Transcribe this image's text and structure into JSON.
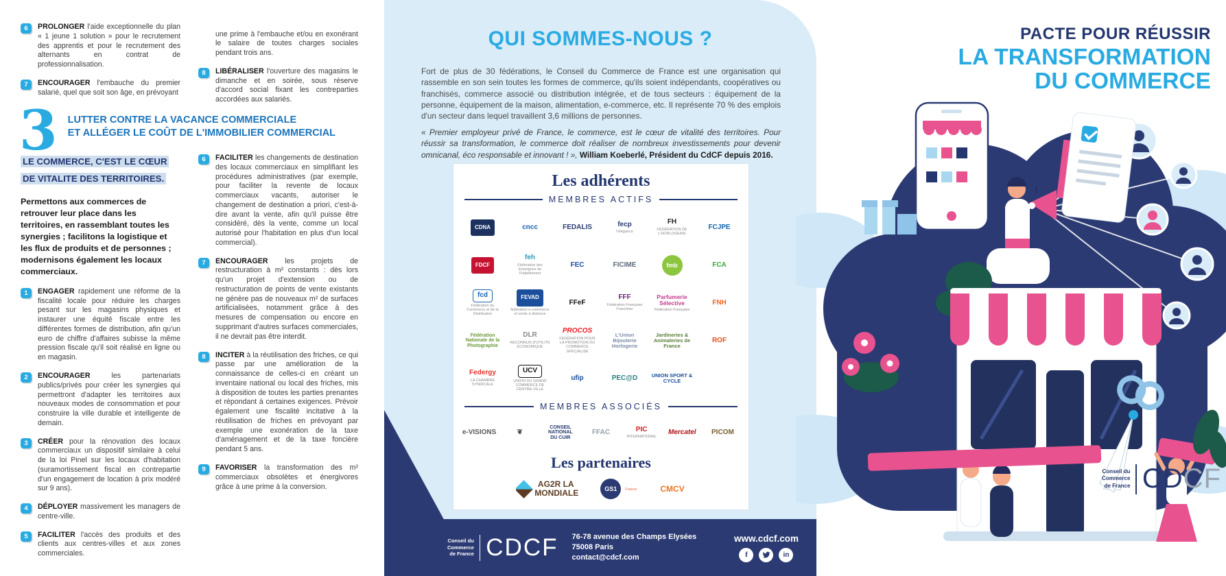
{
  "colors": {
    "cyan": "#29abe2",
    "navy": "#23366f",
    "footer_navy": "#2b3a72",
    "pink": "#e8538f",
    "light_blue_bg": "#d9ecf8",
    "heading_blue": "#1b75bc",
    "highlight_bg": "#cdddee"
  },
  "left_panel": {
    "col_a_items": [
      {
        "n": "6",
        "verb": "PROLONGER",
        "text": "l'aide exceptionnelle du plan « 1 jeune 1 solution » pour le recrutement des apprentis et pour le recrutement des alternants en contrat de professionnalisation."
      },
      {
        "n": "7",
        "verb": "ENCOURAGER",
        "text": "l'embauche du premier salarié, quel que soit son âge, en prévoyant"
      }
    ],
    "col_b_continuation": "une prime à l'embauche et/ou en exonérant le salaire de toutes charges sociales pendant trois ans.",
    "col_b_items": [
      {
        "n": "8",
        "verb": "LIBÉRALISER",
        "text": "l'ouverture des magasins le dimanche et en soirée, sous réserve d'accord social fixant les contreparties accordées aux salariés."
      }
    ],
    "section": {
      "number": "3",
      "title_line1": "LUTTER CONTRE LA VACANCE COMMERCIALE",
      "title_line2": "ET ALLÉGER LE COÛT DE L'IMMOBILIER COMMERCIAL",
      "highlight": "LE COMMERCE, C'EST LE CŒUR DE VITALITE DES TERRITOIRES.",
      "intro": "Permettons aux commerces de retrouver leur place dans les territoires, en rassemblant toutes les synergies ; facilitons la logistique et les flux de produits et de personnes ; modernisons également les locaux commerciaux.",
      "items_left": [
        {
          "n": "1",
          "verb": "ENGAGER",
          "text": "rapidement une réforme de la fiscalité locale pour réduire les charges pesant sur les magasins physiques et instaurer une équité fiscale entre les différentes formes de distribution, afin qu'un euro de chiffre d'affaires subisse la même pression fiscale qu'il soit réalisé en ligne ou en magasin."
        },
        {
          "n": "2",
          "verb": "ENCOURAGER",
          "text": "les partenariats publics/privés pour créer les synergies qui permettront d'adapter les territoires aux nouveaux modes de consommation et pour construire la ville durable et intelligente de demain."
        },
        {
          "n": "3",
          "verb": "CRÉER",
          "text": "pour la rénovation des locaux commerciaux un dispositif similaire à celui de la loi Pinel sur les locaux d'habitation (suramortissement fiscal en contrepartie d'un engagement de location à prix modéré sur 9 ans)."
        },
        {
          "n": "4",
          "verb": "DÉPLOYER",
          "text": "massivement les managers de centre-ville."
        },
        {
          "n": "5",
          "verb": "FACILITER",
          "text": "l'accès des produits et des clients aux centres-villes et aux zones commerciales."
        }
      ],
      "items_right": [
        {
          "n": "6",
          "verb": "FACILITER",
          "text": "les changements de destination des locaux commerciaux en simplifiant les procédures administratives (par exemple, pour faciliter la revente de locaux commerciaux vacants, autoriser le changement de destination a priori, c'est-à-dire avant la vente, afin qu'il puisse être considéré, dès la vente, comme un local autorisé pour l'habitation en plus d'un local commercial)."
        },
        {
          "n": "7",
          "verb": "ENCOURAGER",
          "text": "les projets de restructuration à m² constants : dès lors qu'un projet d'extension ou de restructuration de points de vente existants ne génère pas de nouveaux m² de surfaces artificialisées, notamment grâce à des mesures de compensation ou encore en supprimant d'autres surfaces commerciales, il ne devrait pas être interdit."
        },
        {
          "n": "8",
          "verb": "INCITER",
          "text": "à la réutilisation des friches, ce qui passe par une amélioration de la connaissance de celles-ci en créant un inventaire national ou local des friches, mis à disposition de toutes les parties prenantes et répondant à certaines exigences. Prévoir également une fiscalité incitative à la réutilisation de friches en prévoyant par exemple une exonération de la taxe d'aménagement et de la taxe foncière pendant 5 ans."
        },
        {
          "n": "9",
          "verb": "FAVORISER",
          "text": "la transformation des m² commerciaux obsolètes et énergivores grâce à une prime à la conversion."
        }
      ]
    }
  },
  "middle_panel": {
    "title": "QUI SOMMES-NOUS ?",
    "para1": "Fort de plus de 30 fédérations, le Conseil du Commerce de France est une organisation qui rassemble en son sein toutes les formes de commerce, qu'ils soient indépendants, coopératives ou franchisés, commerce associé ou distribution intégrée, et de tous secteurs : équipement de la personne, équipement de la maison, alimentation, e-commerce, etc. Il représente 70 % des emplois d'un secteur dans lequel travaillent 3,6 millions de personnes.",
    "quote": "« Premier employeur privé de France, le commerce, est le cœur de vitalité des territoires. Pour réussir sa transformation, le commerce doit réaliser de nombreux investissements pour devenir omnicanal, éco responsable et innovant ! », ",
    "quote_author": "William Koeberlé, Président du CdCF depuis 2016.",
    "adherents_title": "Les adhérents",
    "membres_actifs_label": "MEMBRES ACTIFS",
    "membres_associes_label": "MEMBRES ASSOCIÉS",
    "partenaires_title": "Les partenaires",
    "membres_actifs": [
      {
        "n": "cdna",
        "t": "CDNA",
        "c": "#1d3160",
        "sh": "badge"
      },
      {
        "n": "cncc",
        "t": "cncc",
        "c": "#1464ac"
      },
      {
        "n": "fedalis",
        "t": "FEDALIS",
        "c": "#2b3a74"
      },
      {
        "n": "fecp",
        "t": "fecp",
        "c": "#2b3a74",
        "sub": "l'élégance"
      },
      {
        "n": "fh-horlogerie",
        "t": "FH",
        "c": "#222222",
        "sub": "FÉDÉRATION DE L'HORLOGERIE"
      },
      {
        "n": "fcjpe",
        "t": "FCJPE",
        "c": "#1464ac"
      },
      {
        "n": "fdcf",
        "t": "FDCF",
        "c": "#c41230",
        "sh": "badge"
      },
      {
        "n": "feh",
        "t": "feh",
        "c": "#2e9bb5",
        "sub": "Fédération des Enseignes de l'Habillement"
      },
      {
        "n": "fec",
        "t": "FEC",
        "c": "#1b4f9c"
      },
      {
        "n": "ficime",
        "t": "FICIME",
        "c": "#5a6b7a"
      },
      {
        "n": "fmb",
        "t": "fmb",
        "c": "#8cc63f",
        "sh": "round"
      },
      {
        "n": "fca",
        "t": "FCA",
        "c": "#3aaa35"
      },
      {
        "n": "fcd",
        "t": "fcd",
        "c": "#1464ac",
        "sh": "boxed",
        "sub": "Fédération du Commerce et de la Distribution"
      },
      {
        "n": "fevad",
        "t": "FEVAD",
        "c": "#1b4f9c",
        "sh": "badge",
        "sub": "fédération e-commerce et vente à distance"
      },
      {
        "n": "ffef",
        "t": "FFeF",
        "c": "#111111"
      },
      {
        "n": "fff-franchise",
        "t": "FFF",
        "c": "#6a1f7a",
        "sub": "Fédération Française Franchise"
      },
      {
        "n": "parfumerie-selective",
        "t": "Parfumerie Sélective",
        "c": "#c13b8a",
        "fs": "8.5px",
        "sub": "Fédération Française"
      },
      {
        "n": "fnh",
        "t": "FNH",
        "c": "#f26522"
      },
      {
        "n": "fnp-photographie",
        "t": "Fédération Nationale de la Photographie",
        "c": "#6a9a3a",
        "fs": "7px"
      },
      {
        "n": "dlr",
        "t": "DLR",
        "c": "#8a8a8a",
        "sub": "RECONNUS D'UTILITÉ ÉCONOMIQUE"
      },
      {
        "n": "procos",
        "t": "PROCOS",
        "c": "#ed1c24",
        "it": true,
        "sub": "FÉDÉRATION POUR LA PROMOTION DU COMMERCE SPÉCIALISÉ"
      },
      {
        "n": "union-bijouterie-horlogerie",
        "t": "L'Union Bijouterie Horlogerie",
        "c": "#7a8aa8",
        "fs": "7.5px"
      },
      {
        "n": "jardineries-animaleries",
        "t": "Jardineries & Animaleries de France",
        "c": "#5a7d3a",
        "fs": "7.5px"
      },
      {
        "n": "rof-opticiens",
        "t": "ROF",
        "c": "#e94e1b"
      },
      {
        "n": "federgy",
        "t": "Federgy",
        "c": "#e5332a",
        "sub": "LA CHAMBRE SYNDICALE"
      },
      {
        "n": "ucv",
        "t": "UCV",
        "c": "#111111",
        "sh": "boxed",
        "sub": "UNION DU GRAND COMMERCE DE CENTRE-VILLE"
      },
      {
        "n": "ufip",
        "t": "ufip",
        "c": "#1b4f9c"
      },
      {
        "n": "pecad",
        "t": "PEC@D",
        "c": "#2a7f7f"
      },
      {
        "n": "union-sport-cycle",
        "t": "UNION SPORT & CYCLE",
        "c": "#1b4f9c",
        "fs": "7.5px"
      }
    ],
    "membres_associes": [
      {
        "n": "e-visions",
        "t": "e-VISIONS",
        "c": "#58585a"
      },
      {
        "n": "emblem",
        "t": "❦",
        "c": "#4a4a4a"
      },
      {
        "n": "conseil-national-cuir",
        "t": "CONSEIL\nNATIONAL\nDU CUIR",
        "c": "#23366f",
        "fs": "7px"
      },
      {
        "n": "ffac",
        "t": "FFAC",
        "c": "#9aa0a6"
      },
      {
        "n": "pic-international",
        "t": "PIC",
        "c": "#d71920",
        "sub": "INTERNATIONAL"
      },
      {
        "n": "mercatel",
        "t": "Mercatel",
        "c": "#b01116",
        "it": true
      },
      {
        "n": "picom",
        "t": "PICOM",
        "c": "#7a5c2e"
      }
    ],
    "partenaires": [
      {
        "n": "ag2r-la-mondiale",
        "t": "AG2R LA MONDIALE",
        "c": "#5d3b22",
        "icon": "diamond"
      },
      {
        "n": "gs1-france",
        "t": "GS1",
        "c": "#2b3a72",
        "sh": "round",
        "sub": "France",
        "subc": "#f26334"
      },
      {
        "n": "cmcv",
        "t": "CMCV",
        "c": "#e87722"
      }
    ],
    "footer": {
      "org_line1": "Conseil du",
      "org_line2": "Commerce",
      "org_line3": "de France",
      "logo": "CDCF",
      "address_line1": "76-78 avenue des Champs Elysées",
      "address_line2": "75008 Paris",
      "address_line3": "contact@cdcf.com",
      "website": "www.cdcf.com",
      "social": [
        "facebook",
        "twitter",
        "linkedin"
      ]
    }
  },
  "right_panel": {
    "title_line1": "PACTE POUR RÉUSSIR",
    "title_line2": "LA TRANSFORMATION",
    "title_line3": "DU COMMERCE",
    "org_line1": "Conseil du",
    "org_line2": "Commerce",
    "org_line3": "de France",
    "logo": "CDCF"
  }
}
